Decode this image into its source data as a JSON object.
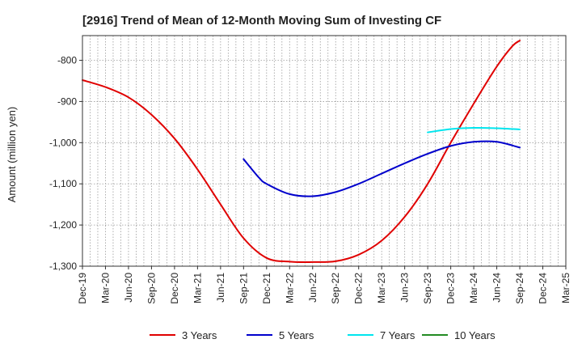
{
  "chart_data": {
    "type": "line",
    "title": "[2916]  Trend of Mean of 12-Month Moving Sum of Investing CF",
    "xlabel": "",
    "ylabel": "Amount (million yen)",
    "ylim": [
      -1300,
      -740
    ],
    "yticks": [
      -1300,
      -1200,
      -1100,
      -1000,
      -900,
      -800
    ],
    "ytick_labels": [
      "-1,300",
      "-1,200",
      "-1,100",
      "-1,000",
      "-900",
      "-800"
    ],
    "categories": [
      "Dec-19",
      "Mar-20",
      "Jun-20",
      "Sep-20",
      "Dec-20",
      "Mar-21",
      "Jun-21",
      "Sep-21",
      "Dec-21",
      "Mar-22",
      "Jun-22",
      "Sep-22",
      "Dec-22",
      "Mar-23",
      "Jun-23",
      "Sep-23",
      "Dec-23",
      "Mar-24",
      "Jun-24",
      "Sep-24",
      "Dec-24",
      "Mar-25"
    ],
    "grid": true,
    "legend_position": "bottom",
    "series": [
      {
        "name": "3 Years",
        "color": "#e00000",
        "points": [
          [
            0,
            -848
          ],
          [
            1,
            -865
          ],
          [
            2,
            -890
          ],
          [
            3,
            -932
          ],
          [
            4,
            -990
          ],
          [
            5,
            -1065
          ],
          [
            6,
            -1150
          ],
          [
            7,
            -1232
          ],
          [
            8,
            -1280
          ],
          [
            9,
            -1289
          ],
          [
            10,
            -1290
          ],
          [
            11,
            -1288
          ],
          [
            12,
            -1272
          ],
          [
            13,
            -1238
          ],
          [
            14,
            -1180
          ],
          [
            15,
            -1100
          ],
          [
            16,
            -1000
          ],
          [
            17,
            -905
          ],
          [
            18,
            -815
          ],
          [
            18.67,
            -766
          ],
          [
            19,
            -752
          ]
        ]
      },
      {
        "name": "5 Years",
        "color": "#0000cc",
        "points": [
          [
            7,
            -1040
          ],
          [
            7.67,
            -1085
          ],
          [
            8,
            -1100
          ],
          [
            9,
            -1125
          ],
          [
            10,
            -1130
          ],
          [
            11,
            -1120
          ],
          [
            12,
            -1100
          ],
          [
            13,
            -1075
          ],
          [
            14,
            -1050
          ],
          [
            15,
            -1027
          ],
          [
            16,
            -1008
          ],
          [
            17,
            -998
          ],
          [
            18,
            -998
          ],
          [
            19,
            -1012
          ]
        ]
      },
      {
        "name": "7 Years",
        "color": "#00e5ee",
        "points": [
          [
            15,
            -975
          ],
          [
            16,
            -967
          ],
          [
            17,
            -964
          ],
          [
            18,
            -965
          ],
          [
            19,
            -968
          ]
        ]
      },
      {
        "name": "10 Years",
        "color": "#228b22",
        "points": []
      }
    ]
  }
}
